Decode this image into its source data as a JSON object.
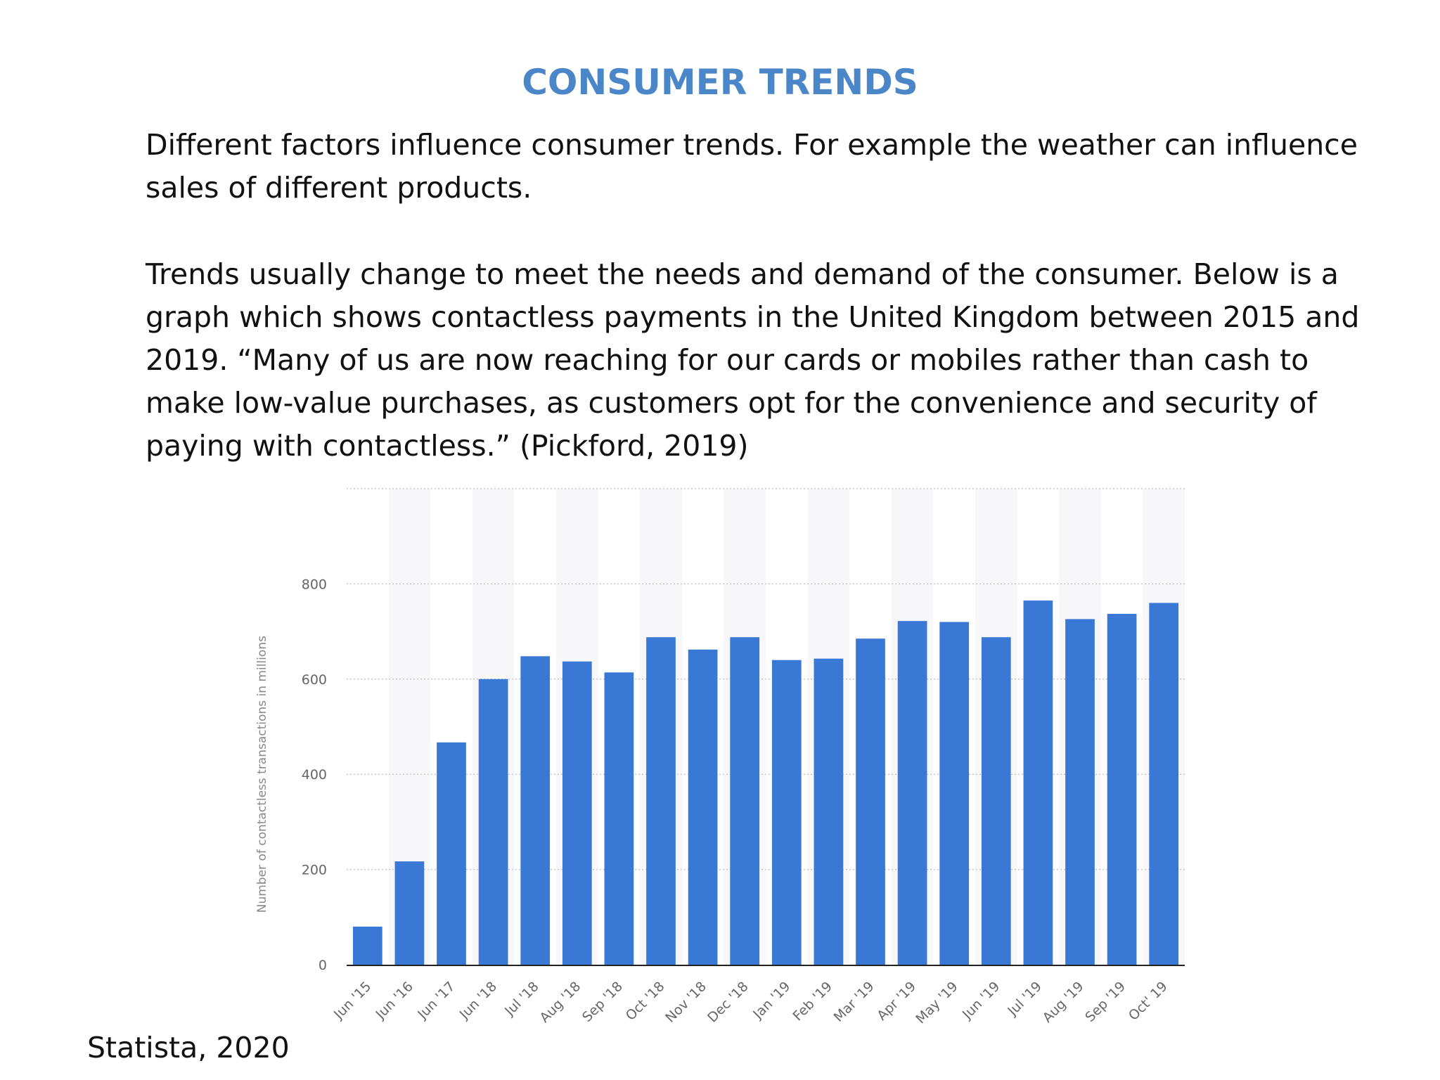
{
  "slide": {
    "title": "CONSUMER TRENDS",
    "paragraph1": "Different factors influence consumer trends. For example the weather can influence sales of different products.",
    "paragraph2": "Trends usually change to meet the needs and demand of the consumer. Below is a graph which shows contactless payments in the United Kingdom between 2015 and 2019. “Many of us are now reaching for our cards or mobiles rather than cash to make low-value purchases, as customers opt for the convenience and security of paying with contactless.” (Pickford, 2019)",
    "source": "Statista, 2020"
  },
  "chart_data": {
    "type": "bar",
    "title": "",
    "xlabel": "",
    "ylabel": "Number of contactless transactions in millions",
    "categories": [
      "Jun '15",
      "Jun '16",
      "Jun '17",
      "Jun '18",
      "Jul '18",
      "Aug '18",
      "Sep '18",
      "Oct '18",
      "Nov '18",
      "Dec '18",
      "Jan '19",
      "Feb '19",
      "Mar '19",
      "Apr '19",
      "May '19",
      "Jun '19",
      "Jul '19",
      "Aug '19",
      "Sep '19",
      "Oct' 19"
    ],
    "values": [
      80,
      217,
      467,
      600,
      648,
      637,
      614,
      688,
      662,
      688,
      640,
      643,
      685,
      722,
      720,
      688,
      765,
      726,
      737,
      760
    ],
    "yticks": [
      0,
      200,
      400,
      600,
      800
    ],
    "ylim": [
      0,
      1000
    ],
    "grid": true,
    "bar_color": "#3a78d6",
    "grid_color": "#c8c8c8",
    "band_color": "#f7f7fa"
  }
}
